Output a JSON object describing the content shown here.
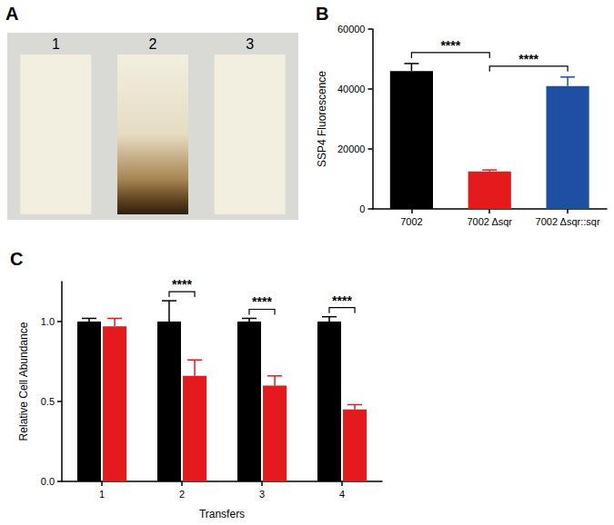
{
  "panel_A": {
    "label": "A",
    "strips": [
      {
        "label": "1",
        "stained": false
      },
      {
        "label": "2",
        "stained": true
      },
      {
        "label": "3",
        "stained": false
      }
    ]
  },
  "chart_data": [
    {
      "type": "bar",
      "title": "B",
      "ylabel": "SSP4 Fluorescence",
      "categories": [
        "7002",
        "7002 Δsqr",
        "7002 Δsqr::sqr"
      ],
      "values": [
        46000,
        12500,
        41000
      ],
      "errors": [
        2500,
        500,
        3000
      ],
      "colors": [
        "#000000",
        "#e41a1c",
        "#1f4fa3"
      ],
      "ylim": [
        0,
        60000
      ],
      "yticks": [
        0,
        20000,
        40000,
        60000
      ],
      "grid": false,
      "annotations": [
        {
          "from": 0,
          "to": 1,
          "label": "****"
        },
        {
          "from": 1,
          "to": 2,
          "label": "****"
        }
      ]
    },
    {
      "type": "bar",
      "title": "C",
      "xlabel": "Transfers",
      "ylabel": "Relative Cell Abundance",
      "categories": [
        "1",
        "2",
        "3",
        "4"
      ],
      "series": [
        {
          "color": "#000000",
          "values": [
            1.0,
            1.0,
            1.0,
            1.0
          ],
          "errors": [
            0.02,
            0.13,
            0.02,
            0.03
          ]
        },
        {
          "color": "#e41a1c",
          "values": [
            0.97,
            0.66,
            0.6,
            0.45
          ],
          "errors": [
            0.05,
            0.1,
            0.06,
            0.03
          ]
        }
      ],
      "ylim": [
        0,
        1.25
      ],
      "yticks": [
        {
          "value": 0,
          "label": "0.0"
        },
        {
          "value": 0.5,
          "label": "0.5"
        },
        {
          "value": 1,
          "label": "1.0"
        }
      ],
      "grid": false,
      "annotations": [
        {
          "category": "2",
          "label": "****"
        },
        {
          "category": "3",
          "label": "****"
        },
        {
          "category": "4",
          "label": "****"
        }
      ]
    }
  ]
}
